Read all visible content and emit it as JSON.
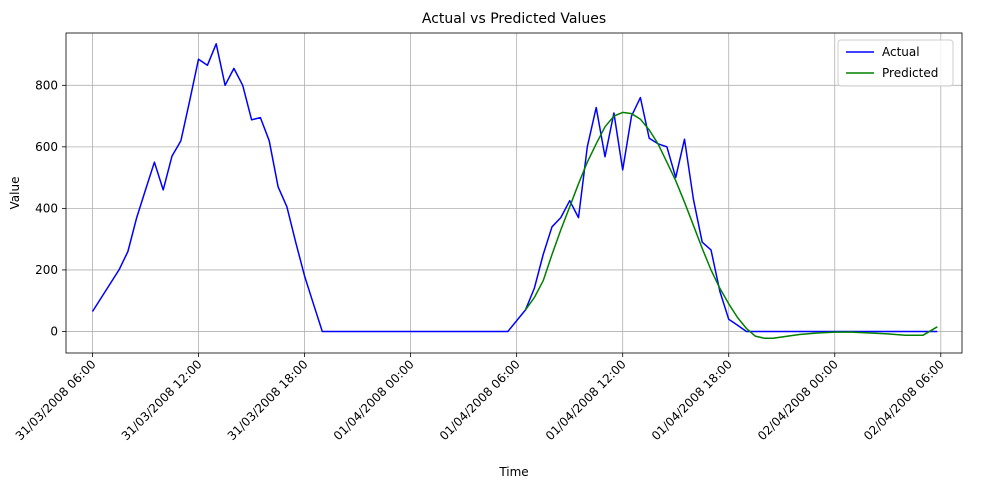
{
  "chart_data": {
    "type": "line",
    "title": "Actual vs Predicted Values",
    "xlabel": "Time",
    "ylabel": "Value",
    "xlim_hours": [
      -1.5,
      49.2
    ],
    "ylim": [
      -70,
      970
    ],
    "grid": true,
    "legend_position": "top-right",
    "x_ticks": [
      {
        "hour": 0,
        "label": "31/03/2008 06:00"
      },
      {
        "hour": 6,
        "label": "31/03/2008 12:00"
      },
      {
        "hour": 12,
        "label": "31/03/2008 18:00"
      },
      {
        "hour": 18,
        "label": "01/04/2008 00:00"
      },
      {
        "hour": 24,
        "label": "01/04/2008 06:00"
      },
      {
        "hour": 30,
        "label": "01/04/2008 12:00"
      },
      {
        "hour": 36,
        "label": "01/04/2008 18:00"
      },
      {
        "hour": 42,
        "label": "02/04/2008 00:00"
      },
      {
        "hour": 48,
        "label": "02/04/2008 06:00"
      }
    ],
    "y_ticks": [
      0,
      200,
      400,
      600,
      800
    ],
    "series": [
      {
        "name": "Actual",
        "color": "#0000ff",
        "x_hours": [
          0,
          1.5,
          2,
          2.5,
          3,
          3.5,
          4,
          4.5,
          5,
          5.5,
          6,
          6.5,
          7,
          7.5,
          8,
          8.5,
          9,
          9.5,
          10,
          10.5,
          11,
          11.5,
          12,
          12.5,
          13,
          14,
          16,
          18,
          20,
          22,
          23.5,
          24.5,
          25,
          25.5,
          26,
          26.5,
          27,
          27.5,
          28,
          28.5,
          29,
          29.5,
          30,
          30.5,
          31,
          31.5,
          32,
          32.5,
          33,
          33.5,
          34,
          34.5,
          35,
          35.5,
          36,
          36.5,
          37,
          38,
          40,
          42,
          44,
          46,
          47,
          47.8
        ],
        "values": [
          65,
          200,
          260,
          370,
          460,
          550,
          460,
          570,
          620,
          750,
          885,
          865,
          935,
          800,
          855,
          800,
          688,
          695,
          620,
          470,
          405,
          290,
          180,
          90,
          0,
          0,
          0,
          0,
          0,
          0,
          0,
          70,
          140,
          250,
          340,
          370,
          425,
          370,
          600,
          728,
          568,
          710,
          525,
          700,
          760,
          628,
          610,
          600,
          500,
          625,
          430,
          290,
          265,
          130,
          40,
          20,
          0,
          0,
          0,
          0,
          0,
          0,
          0,
          0
        ]
      },
      {
        "name": "Predicted",
        "color": "#008000",
        "x_hours": [
          24.5,
          25,
          25.5,
          26,
          26.5,
          27,
          27.5,
          28,
          28.5,
          29,
          29.5,
          30,
          30.5,
          31,
          31.5,
          32,
          32.5,
          33,
          33.5,
          34,
          34.5,
          35,
          35.5,
          36,
          36.5,
          37,
          37.5,
          38,
          38.5,
          39,
          40,
          41,
          42,
          43,
          44,
          45,
          46,
          47,
          47.8
        ],
        "values": [
          70,
          110,
          165,
          250,
          330,
          405,
          480,
          550,
          610,
          665,
          700,
          712,
          708,
          690,
          655,
          610,
          550,
          490,
          420,
          345,
          270,
          200,
          140,
          90,
          45,
          10,
          -15,
          -22,
          -22,
          -18,
          -10,
          -5,
          -2,
          -2,
          -5,
          -8,
          -12,
          -12,
          15
        ]
      }
    ]
  }
}
